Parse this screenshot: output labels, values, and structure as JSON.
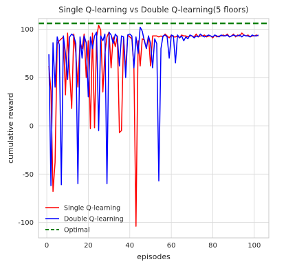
{
  "chart_data": {
    "type": "line",
    "title": "Single Q-learning vs Double Q-learning(5 floors)",
    "xlabel": "episodes",
    "ylabel": "cumulative reward",
    "xlim": [
      -4,
      107
    ],
    "ylim": [
      -116,
      111
    ],
    "xticks": [
      0,
      20,
      40,
      60,
      80,
      100
    ],
    "yticks": [
      -100,
      -50,
      0,
      50,
      100
    ],
    "grid": true,
    "legend_position": "bottom-left",
    "series": [
      {
        "name": "Single Q-learning",
        "color": "#ff0000",
        "style": "solid",
        "x": [
          1,
          2,
          3,
          4,
          5,
          6,
          7,
          8,
          9,
          10,
          11,
          12,
          13,
          14,
          15,
          16,
          17,
          18,
          19,
          20,
          21,
          22,
          23,
          24,
          25,
          26,
          27,
          28,
          29,
          30,
          31,
          32,
          33,
          34,
          35,
          36,
          37,
          38,
          39,
          40,
          41,
          42,
          43,
          44,
          45,
          46,
          47,
          48,
          49,
          50,
          51,
          52,
          53,
          54,
          55,
          56,
          57,
          58,
          59,
          60,
          61,
          62,
          63,
          64,
          65,
          66,
          67,
          68,
          69,
          70,
          71,
          72,
          73,
          74,
          75,
          76,
          77,
          78,
          79,
          80,
          81,
          82,
          83,
          84,
          85,
          86,
          87,
          88,
          89,
          90,
          91,
          92,
          93,
          94,
          95,
          96,
          97,
          98,
          99,
          100,
          101,
          102
        ],
        "values": [
          62,
          36,
          -68,
          -38,
          85,
          88,
          90,
          92,
          32,
          96,
          55,
          18,
          95,
          75,
          40,
          87,
          80,
          95,
          50,
          88,
          -3,
          96,
          -2,
          92,
          104,
          99,
          35,
          75,
          92,
          97,
          60,
          92,
          82,
          93,
          -7,
          -5,
          92,
          58,
          94,
          92,
          90,
          60,
          -104,
          88,
          62,
          90,
          89,
          80,
          93,
          62,
          93,
          93,
          93,
          92,
          93,
          92,
          95,
          93,
          91,
          94,
          92,
          92,
          93,
          91,
          94,
          93,
          93,
          92,
          93,
          93,
          92,
          95,
          92,
          93,
          93,
          94,
          92,
          93,
          93,
          91,
          94,
          92,
          93,
          93,
          94,
          93,
          95,
          92,
          93,
          95,
          92,
          94,
          93,
          96,
          94,
          93,
          94,
          92,
          93,
          93,
          94,
          93
        ]
      },
      {
        "name": "Double Q-learning",
        "color": "#0000ff",
        "style": "solid",
        "x": [
          1,
          2,
          3,
          4,
          5,
          6,
          7,
          8,
          9,
          10,
          11,
          12,
          13,
          14,
          15,
          16,
          17,
          18,
          19,
          20,
          21,
          22,
          23,
          24,
          25,
          26,
          27,
          28,
          29,
          30,
          31,
          32,
          33,
          34,
          35,
          36,
          37,
          38,
          39,
          40,
          41,
          42,
          43,
          44,
          45,
          46,
          47,
          48,
          49,
          50,
          51,
          52,
          53,
          54,
          55,
          56,
          57,
          58,
          59,
          60,
          61,
          62,
          63,
          64,
          65,
          66,
          67,
          68,
          69,
          70,
          71,
          72,
          73,
          74,
          75,
          76,
          77,
          78,
          79,
          80,
          81,
          82,
          83,
          84,
          85,
          86,
          87,
          88,
          89,
          90,
          91,
          92,
          93,
          94,
          95,
          96,
          97,
          98,
          99,
          100,
          101,
          102
        ],
        "values": [
          74,
          -62,
          86,
          40,
          92,
          84,
          -61,
          93,
          75,
          48,
          92,
          95,
          93,
          85,
          -60,
          92,
          70,
          93,
          86,
          30,
          92,
          80,
          93,
          97,
          -5,
          93,
          88,
          95,
          -60,
          97,
          94,
          85,
          95,
          92,
          62,
          93,
          92,
          50,
          94,
          95,
          93,
          60,
          92,
          75,
          102,
          98,
          88,
          80,
          93,
          85,
          60,
          90,
          85,
          -57,
          80,
          93,
          94,
          92,
          70,
          94,
          93,
          65,
          94,
          91,
          93,
          88,
          92,
          90,
          94,
          93,
          91,
          93,
          92,
          95,
          93,
          92,
          93,
          94,
          93,
          92,
          94,
          93,
          92,
          94,
          93,
          93,
          94,
          92,
          93,
          94,
          93,
          93,
          94,
          92,
          94,
          93,
          93,
          92,
          94,
          93,
          93,
          94
        ]
      },
      {
        "name": "Optimal",
        "color": "#008000",
        "style": "dashed",
        "y": 106
      }
    ]
  }
}
